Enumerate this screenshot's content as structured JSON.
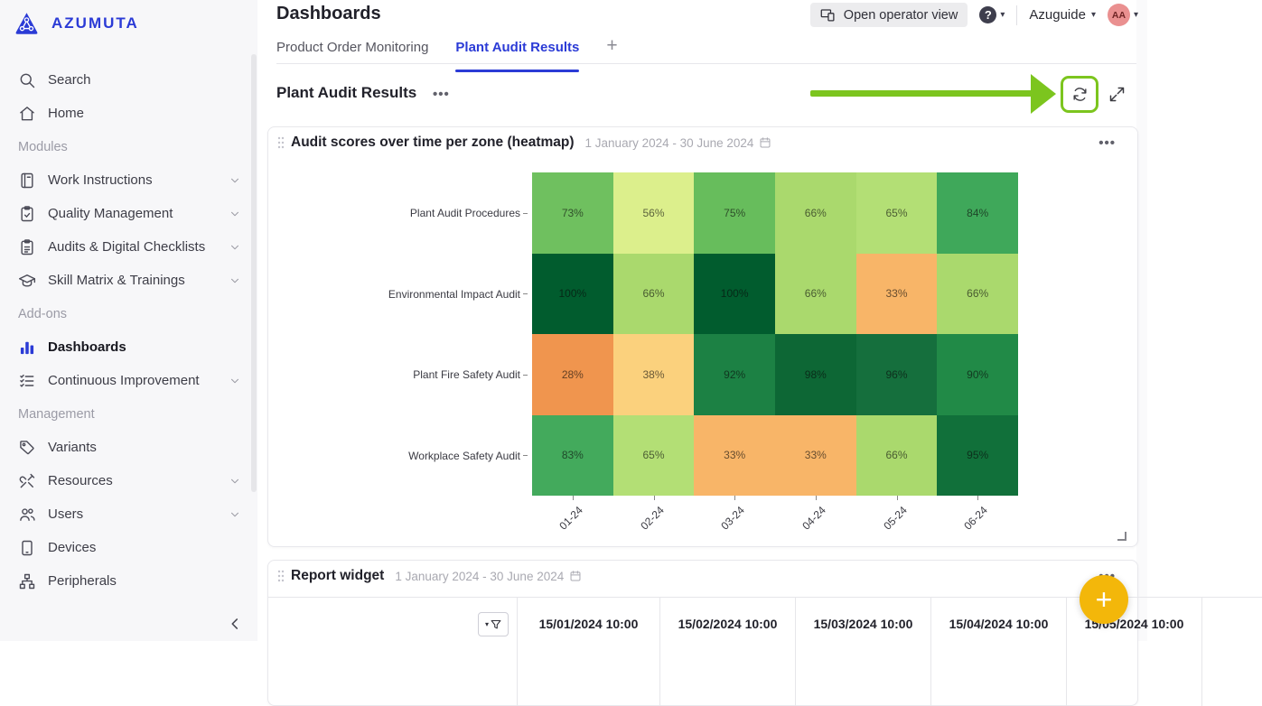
{
  "brand": {
    "name": "AZUMUTA"
  },
  "colors": {
    "accent_blue": "#2B3BD6",
    "annotation_green": "#7CC51E",
    "fab_amber": "#F3B70A",
    "avatar_pink": "#EA9090"
  },
  "sidebar": {
    "top_items": [
      {
        "label": "Search",
        "icon": "search-icon"
      },
      {
        "label": "Home",
        "icon": "home-icon"
      }
    ],
    "groups": [
      {
        "heading": "Modules",
        "items": [
          {
            "label": "Work Instructions",
            "icon": "book-icon",
            "chevron": true
          },
          {
            "label": "Quality Management",
            "icon": "clipboard-check-icon",
            "chevron": true
          },
          {
            "label": "Audits & Digital Checklists",
            "icon": "clipboard-list-icon",
            "chevron": true
          },
          {
            "label": "Skill Matrix & Trainings",
            "icon": "graduation-cap-icon",
            "chevron": true
          }
        ]
      },
      {
        "heading": "Add-ons",
        "items": [
          {
            "label": "Dashboards",
            "icon": "bar-chart-icon",
            "active": true
          },
          {
            "label": "Continuous Improvement",
            "icon": "task-list-icon",
            "chevron": true
          }
        ]
      },
      {
        "heading": "Management",
        "items": [
          {
            "label": "Variants",
            "icon": "tag-icon"
          },
          {
            "label": "Resources",
            "icon": "tools-icon",
            "chevron": true
          },
          {
            "label": "Users",
            "icon": "users-icon",
            "chevron": true
          },
          {
            "label": "Devices",
            "icon": "tablet-icon"
          },
          {
            "label": "Peripherals",
            "icon": "network-icon"
          }
        ]
      }
    ]
  },
  "header": {
    "title": "Dashboards",
    "operator_button": "Open operator view",
    "help_label": "?",
    "account_name": "Azuguide",
    "avatar_initials": "AA"
  },
  "tabs": {
    "items": [
      {
        "label": "Product Order Monitoring",
        "active": false
      },
      {
        "label": "Plant Audit Results",
        "active": true
      }
    ],
    "add_label": "+"
  },
  "section": {
    "title": "Plant Audit Results"
  },
  "heatmap_widget": {
    "title": "Audit scores over time per zone (heatmap)",
    "date_range": "1 January 2024 - 30 June 2024"
  },
  "report_widget": {
    "title": "Report widget",
    "date_range": "1 January 2024 - 30 June 2024",
    "columns": [
      "15/01/2024 10:00",
      "15/02/2024 10:00",
      "15/03/2024 10:00",
      "15/04/2024 10:00",
      "15/05/2024 10:00"
    ]
  },
  "chart_data": {
    "type": "heatmap",
    "title": "Audit scores over time per zone (heatmap)",
    "x_labels": [
      "01-24",
      "02-24",
      "03-24",
      "04-24",
      "05-24",
      "06-24"
    ],
    "y_labels": [
      "Plant Audit Procedures",
      "Environmental Impact Audit",
      "Plant Fire Safety Audit",
      "Workplace Safety Audit"
    ],
    "unit": "%",
    "value_range": [
      0,
      100
    ],
    "values": [
      [
        73,
        56,
        75,
        66,
        65,
        84
      ],
      [
        100,
        66,
        100,
        66,
        33,
        66
      ],
      [
        28,
        38,
        92,
        98,
        96,
        90
      ],
      [
        83,
        65,
        33,
        33,
        66,
        95
      ]
    ],
    "cell_colors": [
      [
        "#6FC05F",
        "#DCEF8C",
        "#67BD5C",
        "#AAD96D",
        "#B3DF75",
        "#3FA85A"
      ],
      [
        "#015C2E",
        "#AAD96D",
        "#015C2E",
        "#AAD96D",
        "#F8B568",
        "#AAD96D"
      ],
      [
        "#F0954E",
        "#FBD17D",
        "#1C8144",
        "#0D6735",
        "#156F3D",
        "#218A47"
      ],
      [
        "#43AA5C",
        "#B3DF75",
        "#F8B568",
        "#F8B568",
        "#AAD96D",
        "#11703A"
      ]
    ]
  }
}
